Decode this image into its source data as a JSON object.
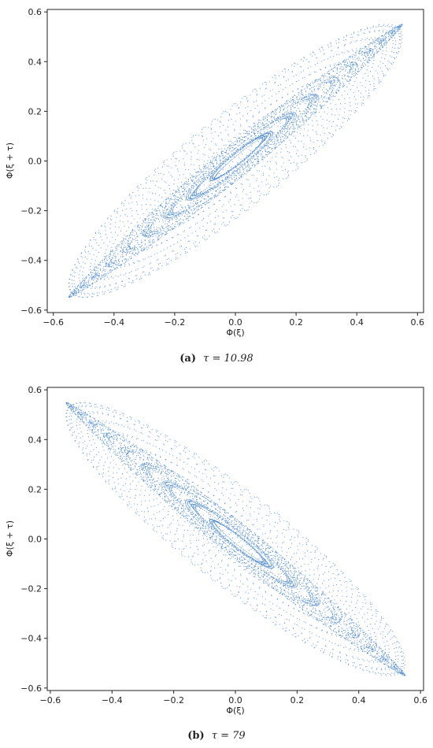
{
  "chart_data": [
    {
      "type": "scatter",
      "caption_prefix": "(a)",
      "caption_math": "τ = 10.98",
      "xlabel": "Φ(ξ)",
      "ylabel": "Φ(ξ + τ)",
      "xlim": [
        -0.62,
        0.62
      ],
      "ylim": [
        -0.61,
        0.61
      ],
      "xticks": [
        -0.6,
        -0.4,
        -0.2,
        0.0,
        0.2,
        0.4,
        0.6
      ],
      "yticks": [
        -0.6,
        -0.4,
        -0.2,
        0.0,
        0.2,
        0.4,
        0.6
      ],
      "xtick_labels": [
        "−0.6",
        "−0.4",
        "−0.2",
        "0.0",
        "0.2",
        "0.4",
        "0.6"
      ],
      "ytick_labels": [
        "−0.6",
        "−0.4",
        "−0.2",
        "0.0",
        "0.2",
        "0.4",
        "0.6"
      ],
      "orientation": "positive",
      "amplitude": 0.55,
      "color": "#4a88d0",
      "grid": false
    },
    {
      "type": "scatter",
      "caption_prefix": "(b)",
      "caption_math": "τ = 79",
      "xlabel": "Φ(ξ)",
      "ylabel": "Φ(ξ + τ)",
      "xlim": [
        -0.61,
        0.61
      ],
      "ylim": [
        -0.61,
        0.61
      ],
      "xticks": [
        -0.6,
        -0.4,
        -0.2,
        0.0,
        0.2,
        0.4,
        0.6
      ],
      "yticks": [
        -0.6,
        -0.4,
        -0.2,
        0.0,
        0.2,
        0.4,
        0.6
      ],
      "xtick_labels": [
        "−0.6",
        "−0.4",
        "−0.2",
        "0.0",
        "0.2",
        "0.4",
        "0.6"
      ],
      "ytick_labels": [
        "−0.6",
        "−0.4",
        "−0.2",
        "0.0",
        "0.2",
        "0.4",
        "0.6"
      ],
      "orientation": "negative",
      "amplitude": 0.55,
      "color": "#4a88d0",
      "grid": false
    }
  ]
}
